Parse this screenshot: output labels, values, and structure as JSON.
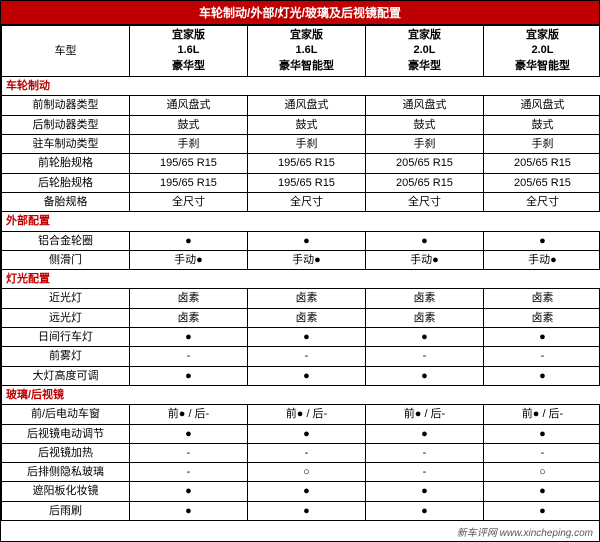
{
  "title": "车轮制动/外部/灯光/玻璃及后视镜配置",
  "header": {
    "model_label": "车型",
    "trims": [
      {
        "line1": "宜家版",
        "line2": "1.6L",
        "line3": "豪华型"
      },
      {
        "line1": "宜家版",
        "line2": "1.6L",
        "line3": "豪华智能型"
      },
      {
        "line1": "宜家版",
        "line2": "2.0L",
        "line3": "豪华型"
      },
      {
        "line1": "宜家版",
        "line2": "2.0L",
        "line3": "豪华智能型"
      }
    ]
  },
  "sections": [
    {
      "name": "车轮制动",
      "rows": [
        {
          "label": "前制动器类型",
          "vals": [
            "通风盘式",
            "通风盘式",
            "通风盘式",
            "通风盘式"
          ]
        },
        {
          "label": "后制动器类型",
          "vals": [
            "鼓式",
            "鼓式",
            "鼓式",
            "鼓式"
          ]
        },
        {
          "label": "驻车制动类型",
          "vals": [
            "手刹",
            "手刹",
            "手刹",
            "手刹"
          ]
        },
        {
          "label": "前轮胎规格",
          "vals": [
            "195/65 R15",
            "195/65 R15",
            "205/65 R15",
            "205/65 R15"
          ]
        },
        {
          "label": "后轮胎规格",
          "vals": [
            "195/65 R15",
            "195/65 R15",
            "205/65 R15",
            "205/65 R15"
          ]
        },
        {
          "label": "备胎规格",
          "vals": [
            "全尺寸",
            "全尺寸",
            "全尺寸",
            "全尺寸"
          ]
        }
      ]
    },
    {
      "name": "外部配置",
      "rows": [
        {
          "label": "铝合金轮圈",
          "vals": [
            "●",
            "●",
            "●",
            "●"
          ]
        },
        {
          "label": "侧滑门",
          "vals": [
            "手动●",
            "手动●",
            "手动●",
            "手动●"
          ]
        }
      ]
    },
    {
      "name": "灯光配置",
      "rows": [
        {
          "label": "近光灯",
          "vals": [
            "卤素",
            "卤素",
            "卤素",
            "卤素"
          ]
        },
        {
          "label": "远光灯",
          "vals": [
            "卤素",
            "卤素",
            "卤素",
            "卤素"
          ]
        },
        {
          "label": "日间行车灯",
          "vals": [
            "●",
            "●",
            "●",
            "●"
          ]
        },
        {
          "label": "前雾灯",
          "vals": [
            "-",
            "-",
            "-",
            "-"
          ]
        },
        {
          "label": "大灯高度可调",
          "vals": [
            "●",
            "●",
            "●",
            "●"
          ]
        }
      ]
    },
    {
      "name": "玻璃/后视镜",
      "rows": [
        {
          "label": "前/后电动车窗",
          "vals": [
            "前● / 后-",
            "前● / 后-",
            "前● / 后-",
            "前● / 后-"
          ]
        },
        {
          "label": "后视镜电动调节",
          "vals": [
            "●",
            "●",
            "●",
            "●"
          ]
        },
        {
          "label": "后视镜加热",
          "vals": [
            "-",
            "-",
            "-",
            "-"
          ]
        },
        {
          "label": "后排侧隐私玻璃",
          "vals": [
            "-",
            "○",
            "-",
            "○"
          ]
        },
        {
          "label": "遮阳板化妆镜",
          "vals": [
            "●",
            "●",
            "●",
            "●"
          ]
        },
        {
          "label": "后雨刷",
          "vals": [
            "●",
            "●",
            "●",
            "●"
          ]
        }
      ]
    }
  ],
  "footer": "新车评网 www.xincheping.com",
  "colors": {
    "header_bg": "#c00000",
    "header_fg": "#ffffff",
    "section_fg": "#c00000",
    "border": "#000000",
    "bg": "#ffffff"
  }
}
